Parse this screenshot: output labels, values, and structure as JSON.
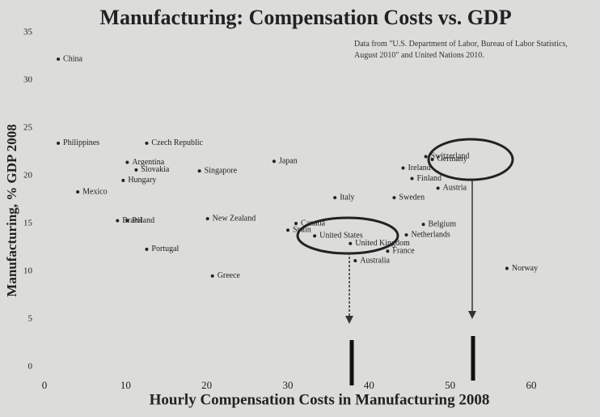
{
  "chart_data": {
    "type": "scatter",
    "title": "Manufacturing: Compensation Costs vs. GDP",
    "note": "Data from \"U.S. Department of Labor, Bureau of Labor Statistics, August 2010\" and United Nations 2010.",
    "x_label": "Hourly Compensation Costs in Manufacturing 2008",
    "y_label": "Manufacturing, % GDP 2008",
    "labels": [
      "China",
      "Philippines",
      "Czech Republic",
      "Argentina",
      "Slovakia",
      "Hungary",
      "Singapore",
      "Japan",
      "Mexico",
      "Brazil",
      "Poland",
      "Portugal",
      "New Zealand",
      "Greece",
      "Canada",
      "Spain",
      "United States",
      "United Kingdom",
      "Australia",
      "France",
      "Italy",
      "Switzerland",
      "Germany",
      "Ireland",
      "Finland",
      "Austria",
      "Sweden",
      "Belgium",
      "Netherlands",
      "Norway"
    ],
    "x": [
      1.7,
      1.7,
      12.6,
      10.2,
      11.3,
      9.7,
      19.1,
      28.3,
      4.1,
      9,
      10.2,
      12.6,
      20.1,
      20.7,
      31,
      30,
      33.3,
      37.7,
      38.3,
      42.3,
      35.8,
      47,
      47.8,
      44.2,
      45.3,
      48.5,
      43.1,
      46.7,
      44.6,
      57
    ],
    "values": [
      32.2,
      23.4,
      23.4,
      21.4,
      20.6,
      19.5,
      20.5,
      21.5,
      18.3,
      15.3,
      15.3,
      12.3,
      15.5,
      9.5,
      15,
      14.3,
      13.7,
      12.9,
      11.1,
      12.1,
      17.7,
      22,
      21.7,
      20.8,
      19.7,
      18.7,
      17.7,
      14.9,
      13.8,
      10.3
    ],
    "color": "#222222",
    "xlim": [
      0,
      60
    ],
    "xticks": [
      0,
      10,
      20,
      30,
      40,
      50,
      60
    ],
    "ylim": [
      0,
      35
    ],
    "yticks": [
      0,
      5,
      10,
      15,
      20,
      25,
      30,
      35
    ],
    "grid": false
  }
}
